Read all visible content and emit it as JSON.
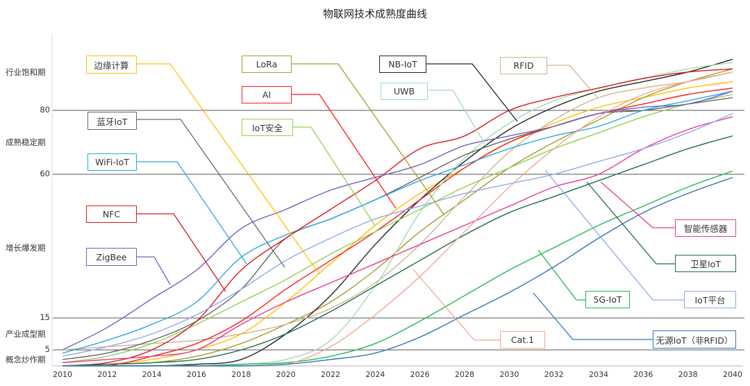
{
  "chart_data": {
    "type": "line",
    "title": "物联网技术成熟度曲线",
    "xlabel": "",
    "ylabel": "",
    "x": [
      2010,
      2012,
      2014,
      2016,
      2018,
      2020,
      2022,
      2024,
      2026,
      2028,
      2030,
      2032,
      2034,
      2036,
      2038,
      2040
    ],
    "xlim": [
      2010,
      2040
    ],
    "ylim": [
      0,
      100
    ],
    "y_ticks": [
      5,
      15,
      60,
      80
    ],
    "gridlines_at": [
      5,
      15,
      60,
      80
    ],
    "stages": [
      {
        "label": "行业饱和期",
        "value": 92
      },
      {
        "label": "成熟稳定期",
        "value": 70
      },
      {
        "label": "增长爆发期",
        "value": 37
      },
      {
        "label": "产业成型期",
        "value": 10
      },
      {
        "label": "概念炒作期",
        "value": 2
      }
    ],
    "legend": "callout-boxes",
    "series": [
      {
        "name": "边缘计算",
        "color": "#FFC000",
        "values": [
          0,
          0.5,
          2,
          5,
          10,
          20,
          32,
          44,
          54,
          62,
          70,
          76,
          81,
          84,
          87,
          89
        ]
      },
      {
        "name": "LoRa",
        "color": "#A89A2A",
        "values": [
          0,
          0.5,
          1,
          3,
          7,
          13,
          20,
          30,
          42,
          52,
          62,
          70,
          77,
          84,
          89,
          93
        ]
      },
      {
        "name": "NB-IoT",
        "color": "#222222",
        "values": [
          0,
          0,
          0,
          0.5,
          2,
          10,
          22,
          38,
          52,
          64,
          74,
          81,
          86,
          89,
          92,
          96
        ]
      },
      {
        "name": "RFID",
        "color": "#D2B48C",
        "values": [
          5,
          6,
          7,
          8,
          10,
          13,
          18,
          26,
          38,
          53,
          67,
          77,
          84,
          87,
          89,
          92
        ]
      },
      {
        "name": "AI",
        "color": "#FF1A1A",
        "values": [
          0,
          0,
          3,
          7,
          14,
          24,
          33,
          42,
          52,
          62,
          70,
          75,
          79,
          82,
          85,
          87
        ]
      },
      {
        "name": "UWB",
        "color": "#A6D9B0",
        "values": [
          0,
          0,
          0,
          0,
          0.5,
          2,
          8,
          25,
          48,
          65,
          76,
          83,
          87,
          90,
          93,
          95
        ]
      },
      {
        "name": "蓝牙IoT",
        "color": "#666666",
        "values": [
          2,
          4,
          8,
          14,
          24,
          40,
          46,
          52,
          59,
          66,
          71,
          75,
          79,
          80,
          82,
          84
        ]
      },
      {
        "name": "IoT安全",
        "color": "#92D050",
        "values": [
          1,
          3,
          7,
          13,
          20,
          27,
          35,
          42,
          49,
          56,
          62,
          68,
          73,
          78,
          82,
          85
        ]
      },
      {
        "name": "WiFi-IoT",
        "color": "#27A9E1",
        "values": [
          4,
          8,
          13,
          20,
          34,
          41,
          46,
          52,
          58,
          63,
          68,
          72,
          75,
          80,
          83,
          86
        ]
      },
      {
        "name": "NFC",
        "color": "#D7191C",
        "values": [
          0,
          1,
          5,
          14,
          30,
          40,
          49,
          58,
          68,
          72,
          80,
          84,
          87,
          90,
          92,
          93
        ]
      },
      {
        "name": "ZigBee",
        "color": "#7060C0",
        "values": [
          5,
          12,
          21,
          30,
          43,
          49,
          55,
          59,
          63,
          69,
          72,
          75,
          79,
          81,
          82,
          86
        ]
      },
      {
        "name": "智能传感器",
        "color": "#E8388C",
        "values": [
          1,
          2,
          3,
          5,
          13,
          20,
          26,
          32,
          38,
          44,
          50,
          56,
          60,
          68,
          74,
          78
        ]
      },
      {
        "name": "卫星IoT",
        "color": "#1E6B4A",
        "values": [
          0,
          0.5,
          1,
          2,
          5,
          10,
          17,
          25,
          33,
          41,
          48,
          53,
          58,
          63,
          68,
          72
        ]
      },
      {
        "name": "IoT平台",
        "color": "#8FA8F0",
        "values": [
          3,
          6,
          10,
          16,
          24,
          33,
          40,
          46,
          50,
          54,
          57,
          60,
          64,
          68,
          73,
          79
        ]
      },
      {
        "name": "5G-IoT",
        "color": "#1DB954",
        "values": [
          0,
          0,
          0,
          0,
          0.5,
          1,
          3,
          7,
          14,
          22,
          30,
          37,
          44,
          50,
          56,
          61
        ]
      },
      {
        "name": "Cat.1",
        "color": "#F0A890",
        "values": [
          0,
          0,
          0,
          0,
          0,
          0.5,
          6,
          16,
          28,
          42,
          56,
          68,
          78,
          85,
          89,
          92
        ]
      },
      {
        "name": "无源IoT（非RFID）",
        "color": "#2E75B6",
        "values": [
          0,
          0,
          0,
          0,
          0,
          0.5,
          2,
          4,
          9,
          16,
          23,
          31,
          40,
          48,
          54,
          59
        ]
      }
    ]
  }
}
